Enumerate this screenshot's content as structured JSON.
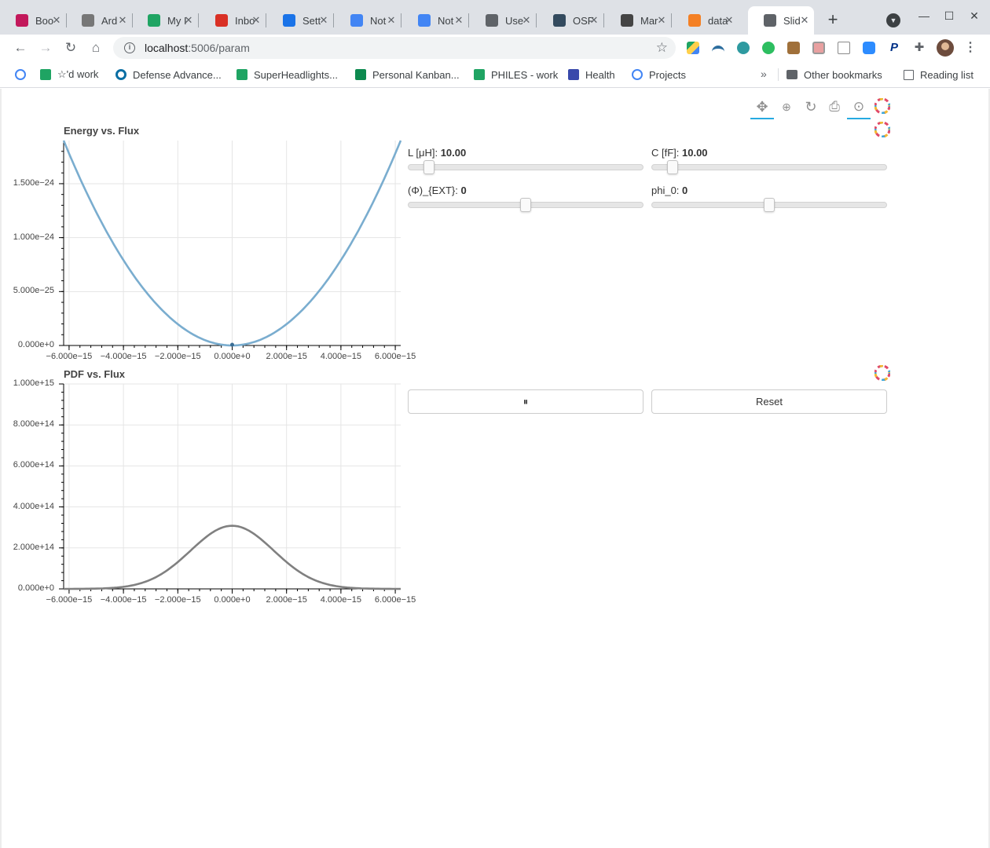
{
  "tabs": [
    {
      "title": "Boo",
      "icon": "app-icon",
      "color": "#c2185b"
    },
    {
      "title": "Ard",
      "icon": "mail-icon",
      "color": "#777777"
    },
    {
      "title": "My I",
      "icon": "drive-icon",
      "color": "#1fa463"
    },
    {
      "title": "Inbo",
      "icon": "gmail-icon",
      "color": "#d93025"
    },
    {
      "title": "Sett",
      "icon": "gear-icon",
      "color": "#1a73e8"
    },
    {
      "title": "Not",
      "icon": "docs-icon",
      "color": "#4285f4"
    },
    {
      "title": "Not",
      "icon": "docs-icon",
      "color": "#4285f4"
    },
    {
      "title": "Use",
      "icon": "globe-icon",
      "color": "#5f6368"
    },
    {
      "title": "OSF",
      "icon": "osf-icon",
      "color": "#334a5e"
    },
    {
      "title": "Mar",
      "icon": "markdown-icon",
      "color": "#444444"
    },
    {
      "title": "data",
      "icon": "stackoverflow-icon",
      "color": "#f48024"
    },
    {
      "title": "Slid",
      "icon": "globe-icon",
      "color": "#5f6368"
    }
  ],
  "address_bar": {
    "host": "localhost",
    "path": ":5006/param"
  },
  "bookmarks": [
    {
      "label": "",
      "icon": "google-icon",
      "color": "#4285f4"
    },
    {
      "label": "☆'d work",
      "icon": "drive-icon",
      "color": "#1fa463"
    },
    {
      "label": "Defense Advance...",
      "icon": "circle-icon",
      "color": "#0b6fa4"
    },
    {
      "label": "SuperHeadlights...",
      "icon": "drive-icon",
      "color": "#1fa463"
    },
    {
      "label": "Personal Kanban...",
      "icon": "flag-icon",
      "color": "#0d8a4f"
    },
    {
      "label": "PHILES - work",
      "icon": "drive-icon",
      "color": "#1fa463"
    },
    {
      "label": "Health",
      "icon": "calendar-icon",
      "color": "#3949ab"
    },
    {
      "label": "Projects",
      "icon": "google-icon",
      "color": "#4285f4"
    }
  ],
  "other_bookmarks": "Other bookmarks",
  "reading_list": "Reading list",
  "energy_plot": {
    "title": "Energy vs. Flux",
    "x_ticks": [
      "−6.000e−15",
      "−4.000e−15",
      "−2.000e−15",
      "0.000e+0",
      "2.000e−15",
      "4.000e−15",
      "6.000e−15"
    ],
    "y_ticks": [
      "0.000e+0",
      "5.000e−25",
      "1.000e−24",
      "1.500e−24"
    ]
  },
  "pdf_plot": {
    "title": "PDF vs. Flux",
    "x_ticks": [
      "−6.000e−15",
      "−4.000e−15",
      "−2.000e−15",
      "0.000e+0",
      "2.000e−15",
      "4.000e−15",
      "6.000e−15"
    ],
    "y_ticks": [
      "0.000e+0",
      "2.000e+14",
      "4.000e+14",
      "6.000e+14",
      "8.000e+14",
      "1.000e+15"
    ]
  },
  "chart_data": [
    {
      "type": "line",
      "title": "Energy vs. Flux",
      "xlim": [
        -6.2e-15,
        6.2e-15
      ],
      "ylim": [
        0,
        1.9e-24
      ],
      "color": "#7aadcf",
      "grid": true,
      "series": [
        {
          "x": [
            -6.2e-15,
            -5e-15,
            -4e-15,
            -3e-15,
            -2e-15,
            -1e-15,
            0,
            1e-15,
            2e-15,
            3e-15,
            4e-15,
            5e-15,
            6.2e-15
          ],
          "values": [
            1.9e-24,
            1.24e-24,
            7.9e-25,
            4.45e-25,
            1.98e-25,
            4.9e-26,
            0,
            4.9e-26,
            1.98e-25,
            4.45e-25,
            7.9e-25,
            1.24e-24,
            1.9e-24
          ]
        }
      ]
    },
    {
      "type": "line",
      "title": "PDF vs. Flux",
      "xlim": [
        -6.2e-15,
        6.2e-15
      ],
      "ylim": [
        0,
        1000000000000000.0
      ],
      "color": "#808080",
      "grid": true,
      "series": [
        {
          "x": [
            -6e-15,
            -5e-15,
            -4e-15,
            -3e-15,
            -2e-15,
            -1.5e-15,
            -1e-15,
            -5e-16,
            0,
            5e-16,
            1e-15,
            1.5e-15,
            2e-15,
            3e-15,
            4e-15,
            5e-15,
            6e-15
          ],
          "values": [
            100000000000.0,
            1500000000000.0,
            9000000000000.0,
            45000000000000.0,
            118000000000000.0,
            175000000000000.0,
            235000000000000.0,
            285000000000000.0,
            308000000000000.0,
            285000000000000.0,
            235000000000000.0,
            175000000000000.0,
            118000000000000.0,
            45000000000000.0,
            9000000000000.0,
            1500000000000.0,
            100000000000.0
          ]
        }
      ]
    }
  ],
  "sliders": [
    {
      "label": "L [μH]: ",
      "value": "10.00",
      "fraction": 0.09
    },
    {
      "label": "C [fF]: ",
      "value": "10.00",
      "fraction": 0.09
    },
    {
      "label": "(Φ)_{EXT}: ",
      "value": "0",
      "fraction": 0.5
    },
    {
      "label": "phi_0: ",
      "value": "0",
      "fraction": 0.5
    }
  ],
  "buttons": {
    "play_pause": "⏸",
    "reset": "Reset"
  }
}
